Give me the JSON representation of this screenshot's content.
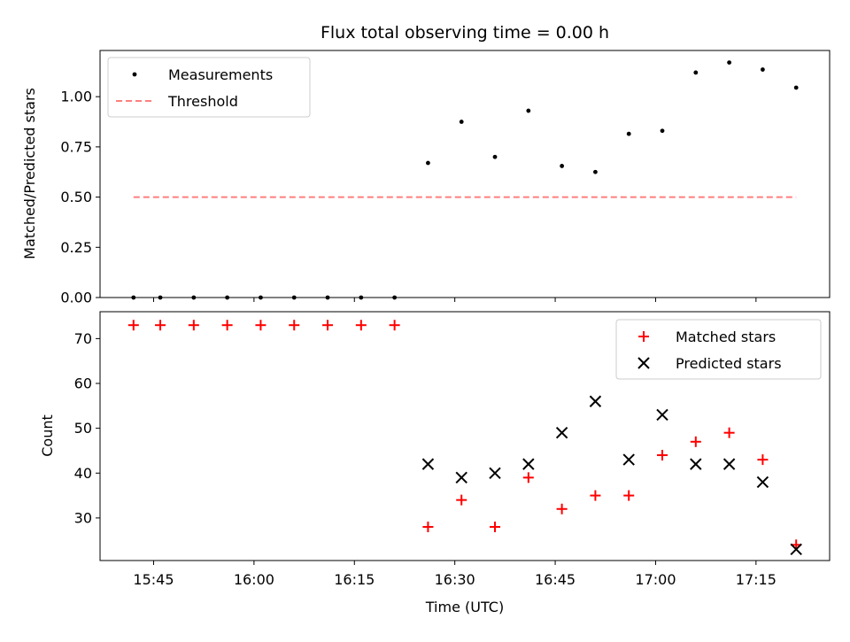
{
  "chart_data": [
    {
      "type": "scatter",
      "title": "Flux total observing time = 0.00 h",
      "xlabel": "",
      "ylabel": "Matched/Predicted stars",
      "ylim": [
        0,
        1.23
      ],
      "yticks": [
        "0.00",
        "0.25",
        "0.50",
        "0.75",
        "1.00"
      ],
      "legend_position": "upper-left",
      "colors": {
        "measurements": "#000000",
        "threshold": "#ff7f7f"
      },
      "series": [
        {
          "name": "Measurements",
          "x": [
            "15:42",
            "15:46",
            "15:51",
            "15:56",
            "16:01",
            "16:06",
            "16:11",
            "16:16",
            "16:21",
            "16:26",
            "16:31",
            "16:36",
            "16:41",
            "16:46",
            "16:51",
            "16:56",
            "17:01",
            "17:06",
            "17:11",
            "17:16",
            "17:21"
          ],
          "y": [
            0.0,
            0.0,
            0.0,
            0.0,
            0.0,
            0.0,
            0.0,
            0.0,
            0.0,
            0.67,
            0.875,
            0.7,
            0.93,
            0.655,
            0.625,
            0.815,
            0.83,
            1.12,
            1.17,
            1.135,
            1.045
          ]
        },
        {
          "name": "Threshold",
          "style": "dashed-line",
          "x": [
            "15:42",
            "17:21"
          ],
          "y": [
            0.5,
            0.5
          ]
        }
      ]
    },
    {
      "type": "scatter",
      "title": "",
      "xlabel": "Time (UTC)",
      "ylabel": "Count",
      "ylim": [
        20.5,
        76
      ],
      "yticks": [
        "30",
        "40",
        "50",
        "60",
        "70"
      ],
      "xlim": [
        "15:37",
        "17:26"
      ],
      "xticks": [
        "15:45",
        "16:00",
        "16:15",
        "16:30",
        "16:45",
        "17:00",
        "17:15"
      ],
      "legend_position": "upper-right",
      "colors": {
        "matched": "#ff0000",
        "predicted": "#000000"
      },
      "series": [
        {
          "name": "Matched stars",
          "marker": "plus",
          "x": [
            "15:42",
            "15:46",
            "15:51",
            "15:56",
            "16:01",
            "16:06",
            "16:11",
            "16:16",
            "16:21",
            "16:26",
            "16:31",
            "16:36",
            "16:41",
            "16:46",
            "16:51",
            "16:56",
            "17:01",
            "17:06",
            "17:11",
            "17:16",
            "17:21"
          ],
          "y": [
            73,
            73,
            73,
            73,
            73,
            73,
            73,
            73,
            73,
            28,
            34,
            28,
            39,
            32,
            35,
            35,
            44,
            47,
            49,
            43,
            24
          ]
        },
        {
          "name": "Predicted stars",
          "marker": "x",
          "x": [
            "16:26",
            "16:31",
            "16:36",
            "16:41",
            "16:46",
            "16:51",
            "16:56",
            "17:01",
            "17:06",
            "17:11",
            "17:16",
            "17:21"
          ],
          "y": [
            42,
            39,
            40,
            42,
            49,
            56,
            43,
            53,
            42,
            42,
            38,
            23
          ]
        }
      ]
    }
  ]
}
